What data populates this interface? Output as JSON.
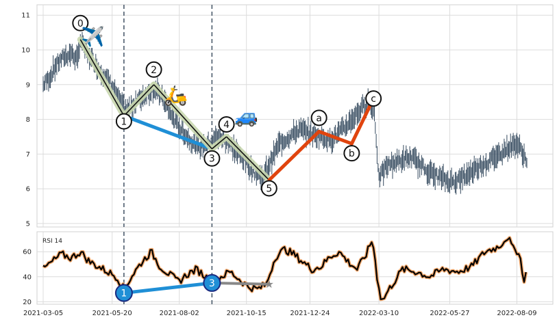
{
  "chart_data": [
    {
      "type": "line",
      "panel": "price",
      "ylim": [
        4.9,
        11.3
      ],
      "yticks": [
        5,
        6,
        7,
        8,
        9,
        10,
        11
      ],
      "grid": true,
      "price_path": [
        [
          "2021-03-05",
          9.0
        ],
        [
          "2021-03-12",
          9.2
        ],
        [
          "2021-03-20",
          9.6
        ],
        [
          "2021-03-28",
          9.8
        ],
        [
          "2021-04-05",
          9.9
        ],
        [
          "2021-04-12",
          9.7
        ],
        [
          "2021-04-15",
          10.3
        ],
        [
          "2021-04-22",
          9.9
        ],
        [
          "2021-05-01",
          9.6
        ],
        [
          "2021-05-10",
          9.3
        ],
        [
          "2021-05-20",
          9.0
        ],
        [
          "2021-05-28",
          8.5
        ],
        [
          "2021-06-05",
          8.2
        ],
        [
          "2021-06-15",
          8.5
        ],
        [
          "2021-06-25",
          8.7
        ],
        [
          "2021-07-05",
          8.9
        ],
        [
          "2021-07-15",
          8.6
        ],
        [
          "2021-07-25",
          8.1
        ],
        [
          "2021-08-04",
          7.7
        ],
        [
          "2021-08-14",
          7.4
        ],
        [
          "2021-08-24",
          7.2
        ],
        [
          "2021-09-03",
          7.3
        ],
        [
          "2021-09-13",
          7.5
        ],
        [
          "2021-09-23",
          7.4
        ],
        [
          "2021-10-03",
          7.1
        ],
        [
          "2021-10-13",
          6.8
        ],
        [
          "2021-10-23",
          6.5
        ],
        [
          "2021-11-02",
          6.3
        ],
        [
          "2021-11-09",
          6.7
        ],
        [
          "2021-11-20",
          7.3
        ],
        [
          "2021-12-01",
          7.5
        ],
        [
          "2021-12-12",
          7.7
        ],
        [
          "2021-12-24",
          7.6
        ],
        [
          "2022-01-05",
          7.5
        ],
        [
          "2022-01-15",
          7.4
        ],
        [
          "2022-01-25",
          7.6
        ],
        [
          "2022-02-05",
          7.9
        ],
        [
          "2022-02-15",
          8.2
        ],
        [
          "2022-02-26",
          8.5
        ],
        [
          "2022-03-05",
          8.2
        ],
        [
          "2022-03-10",
          6.3
        ],
        [
          "2022-03-20",
          6.7
        ],
        [
          "2022-04-01",
          6.8
        ],
        [
          "2022-04-15",
          6.9
        ],
        [
          "2022-04-28",
          6.6
        ],
        [
          "2022-05-10",
          6.4
        ],
        [
          "2022-05-27",
          6.2
        ],
        [
          "2022-06-10",
          6.3
        ],
        [
          "2022-06-25",
          6.6
        ],
        [
          "2022-07-10",
          6.8
        ],
        [
          "2022-07-25",
          7.1
        ],
        [
          "2022-08-09",
          7.3
        ],
        [
          "2022-08-16",
          7.0
        ],
        [
          "2022-08-20",
          6.8
        ]
      ],
      "vlines": [
        "2021-06-02",
        "2021-09-07"
      ],
      "wave_points": [
        {
          "label": "0",
          "x": "2021-04-15",
          "y": 10.3
        },
        {
          "label": "1",
          "x": "2021-06-02",
          "y": 8.1
        },
        {
          "label": "2",
          "x": "2021-07-05",
          "y": 9.0
        },
        {
          "label": "3",
          "x": "2021-09-07",
          "y": 7.15
        },
        {
          "label": "4",
          "x": "2021-09-23",
          "y": 7.5
        },
        {
          "label": "5",
          "x": "2021-11-09",
          "y": 6.25
        },
        {
          "label": "a",
          "x": "2022-01-03",
          "y": 7.65
        },
        {
          "label": "b",
          "x": "2022-02-08",
          "y": 7.3
        },
        {
          "label": "c",
          "x": "2022-03-04",
          "y": 8.6
        }
      ],
      "label_offsets_note": "",
      "impulse_segments": [
        [
          "0",
          "1"
        ],
        [
          "1",
          "2"
        ],
        [
          "2",
          "3"
        ],
        [
          "3",
          "4"
        ],
        [
          "4",
          "5"
        ]
      ],
      "correction_segments": [
        [
          "5",
          "a"
        ],
        [
          "a",
          "b"
        ],
        [
          "b",
          "c"
        ]
      ],
      "trend_line": [
        "1",
        "3"
      ],
      "icons": [
        {
          "name": "airplane-icon",
          "glyph": "✈️",
          "x": "2021-04-29",
          "y": 10.2
        },
        {
          "name": "scooter-icon",
          "glyph": "🛵",
          "x": "2021-07-29",
          "y": 8.5
        },
        {
          "name": "car-icon",
          "glyph": "🚙",
          "x": "2021-10-15",
          "y": 7.9
        }
      ],
      "colors": {
        "price": "#34495e",
        "impulse_glow": "#c9d8b0",
        "impulse_line": "#111111",
        "trend": "#1f8fd6",
        "correction": "#e0440e",
        "vline": "#4b5b6b",
        "grid": "#dcdcdc"
      }
    },
    {
      "type": "line",
      "panel": "rsi",
      "title": "RSI 14",
      "ylim": [
        18,
        76
      ],
      "yticks": [
        20,
        40,
        60
      ],
      "xticks": [
        "2021-03-05",
        "2021-05-20",
        "2021-08-02",
        "2021-10-15",
        "2021-12-24",
        "2022-03-10",
        "2022-05-27",
        "2022-08-09"
      ],
      "rsi_path": [
        [
          "2021-03-05",
          46
        ],
        [
          "2021-03-15",
          52
        ],
        [
          "2021-03-25",
          58
        ],
        [
          "2021-04-05",
          55
        ],
        [
          "2021-04-15",
          60
        ],
        [
          "2021-04-25",
          52
        ],
        [
          "2021-05-05",
          48
        ],
        [
          "2021-05-15",
          44
        ],
        [
          "2021-05-25",
          40
        ],
        [
          "2021-06-02",
          30
        ],
        [
          "2021-06-12",
          42
        ],
        [
          "2021-06-22",
          52
        ],
        [
          "2021-07-02",
          60
        ],
        [
          "2021-07-12",
          48
        ],
        [
          "2021-07-22",
          42
        ],
        [
          "2021-08-01",
          36
        ],
        [
          "2021-08-11",
          42
        ],
        [
          "2021-08-21",
          46
        ],
        [
          "2021-08-31",
          40
        ],
        [
          "2021-09-07",
          36
        ],
        [
          "2021-09-17",
          40
        ],
        [
          "2021-09-27",
          44
        ],
        [
          "2021-10-07",
          38
        ],
        [
          "2021-10-17",
          32
        ],
        [
          "2021-10-27",
          30
        ],
        [
          "2021-11-06",
          34
        ],
        [
          "2021-11-16",
          56
        ],
        [
          "2021-11-26",
          62
        ],
        [
          "2021-12-06",
          58
        ],
        [
          "2021-12-16",
          52
        ],
        [
          "2021-12-26",
          46
        ],
        [
          "2022-01-05",
          48
        ],
        [
          "2022-01-15",
          56
        ],
        [
          "2022-01-25",
          60
        ],
        [
          "2022-02-04",
          52
        ],
        [
          "2022-02-14",
          46
        ],
        [
          "2022-02-24",
          58
        ],
        [
          "2022-03-03",
          70
        ],
        [
          "2022-03-08",
          40
        ],
        [
          "2022-03-13",
          20
        ],
        [
          "2022-03-23",
          32
        ],
        [
          "2022-04-05",
          46
        ],
        [
          "2022-04-20",
          44
        ],
        [
          "2022-05-05",
          40
        ],
        [
          "2022-05-20",
          46
        ],
        [
          "2022-06-05",
          44
        ],
        [
          "2022-06-20",
          48
        ],
        [
          "2022-07-05",
          60
        ],
        [
          "2022-07-20",
          64
        ],
        [
          "2022-07-30",
          72
        ],
        [
          "2022-08-05",
          62
        ],
        [
          "2022-08-12",
          60
        ],
        [
          "2022-08-16",
          36
        ],
        [
          "2022-08-20",
          46
        ]
      ],
      "markers": [
        {
          "label": "1",
          "x": "2021-06-02",
          "y": 27
        },
        {
          "label": "3",
          "x": "2021-09-07",
          "y": 35
        }
      ],
      "marker_link": [
        "1",
        "3"
      ],
      "projection_end": {
        "x": "2021-11-09",
        "y": 34
      },
      "vlines": [
        "2021-06-02",
        "2021-09-07"
      ],
      "colors": {
        "rsi_line": "#000000",
        "rsi_glow": "#f2a76a",
        "marker_fill": "#1f8fd6",
        "marker_edge": "#1a2a80",
        "marker_link": "#1f8fd6",
        "projection": "#888888",
        "star": "#888888"
      }
    }
  ]
}
